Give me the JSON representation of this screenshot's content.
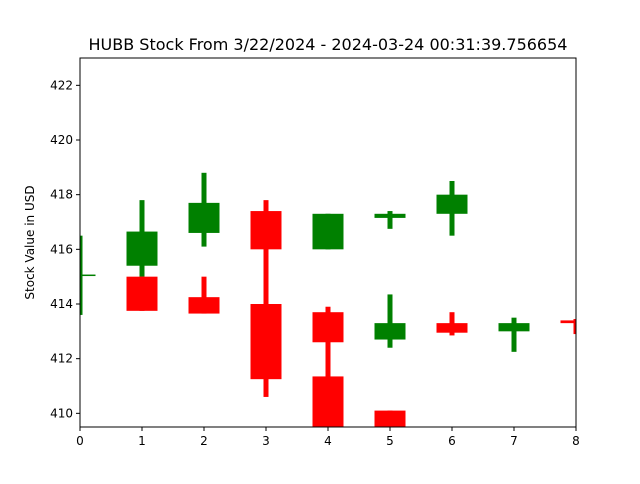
{
  "chart_data": {
    "type": "candlestick",
    "title": "HUBB Stock From 3/22/2024 - 2024-03-24 00:31:39.756654",
    "xlabel": "",
    "ylabel": "Stock Value in USD",
    "xlim": [
      0,
      8
    ],
    "ylim": [
      409.5,
      423
    ],
    "xticks": [
      0,
      1,
      2,
      3,
      4,
      5,
      6,
      7,
      8
    ],
    "yticks": [
      410,
      412,
      414,
      416,
      418,
      420,
      422
    ],
    "grid": false,
    "colors": {
      "up": "#008000",
      "down": "#ff0000"
    },
    "candles": [
      {
        "x": 0,
        "dir": "up",
        "low": 413.6,
        "high": 416.5,
        "open": 415.05,
        "close": 415.05
      },
      {
        "x": 1,
        "dir": "up",
        "low": 415.0,
        "high": 417.8,
        "open": 415.4,
        "close": 416.65
      },
      {
        "x": 1,
        "dir": "down",
        "low": 413.75,
        "high": 415.0,
        "open": 415.0,
        "close": 413.75
      },
      {
        "x": 2,
        "dir": "up",
        "low": 416.1,
        "high": 418.8,
        "open": 416.6,
        "close": 417.7
      },
      {
        "x": 2,
        "dir": "down",
        "low": 413.65,
        "high": 415.0,
        "open": 414.25,
        "close": 413.65
      },
      {
        "x": 3,
        "dir": "down",
        "low": 414.0,
        "high": 417.8,
        "open": 417.4,
        "close": 416.0
      },
      {
        "x": 3,
        "dir": "down",
        "low": 410.6,
        "high": 414.0,
        "open": 414.0,
        "close": 411.25
      },
      {
        "x": 4,
        "dir": "up",
        "low": 416.0,
        "high": 417.3,
        "open": 416.0,
        "close": 417.3
      },
      {
        "x": 4,
        "dir": "down",
        "low": 411.3,
        "high": 413.9,
        "open": 413.7,
        "close": 412.6
      },
      {
        "x": 4,
        "dir": "down",
        "low": 409.5,
        "high": 411.35,
        "open": 411.35,
        "close": 409.5
      },
      {
        "x": 5,
        "dir": "up",
        "low": 416.75,
        "high": 417.4,
        "open": 417.15,
        "close": 417.3
      },
      {
        "x": 5,
        "dir": "up",
        "low": 412.4,
        "high": 414.35,
        "open": 412.7,
        "close": 413.3
      },
      {
        "x": 5,
        "dir": "down",
        "low": 409.5,
        "high": 410.1,
        "open": 410.1,
        "close": 409.5
      },
      {
        "x": 6,
        "dir": "up",
        "low": 416.5,
        "high": 418.5,
        "open": 417.3,
        "close": 418.0
      },
      {
        "x": 6,
        "dir": "down",
        "low": 412.85,
        "high": 413.7,
        "open": 413.3,
        "close": 412.95
      },
      {
        "x": 7,
        "dir": "up",
        "low": 412.25,
        "high": 413.5,
        "open": 413.0,
        "close": 413.3
      },
      {
        "x": 8,
        "dir": "down",
        "low": 412.9,
        "high": 413.45,
        "open": 413.4,
        "close": 413.3
      }
    ]
  }
}
